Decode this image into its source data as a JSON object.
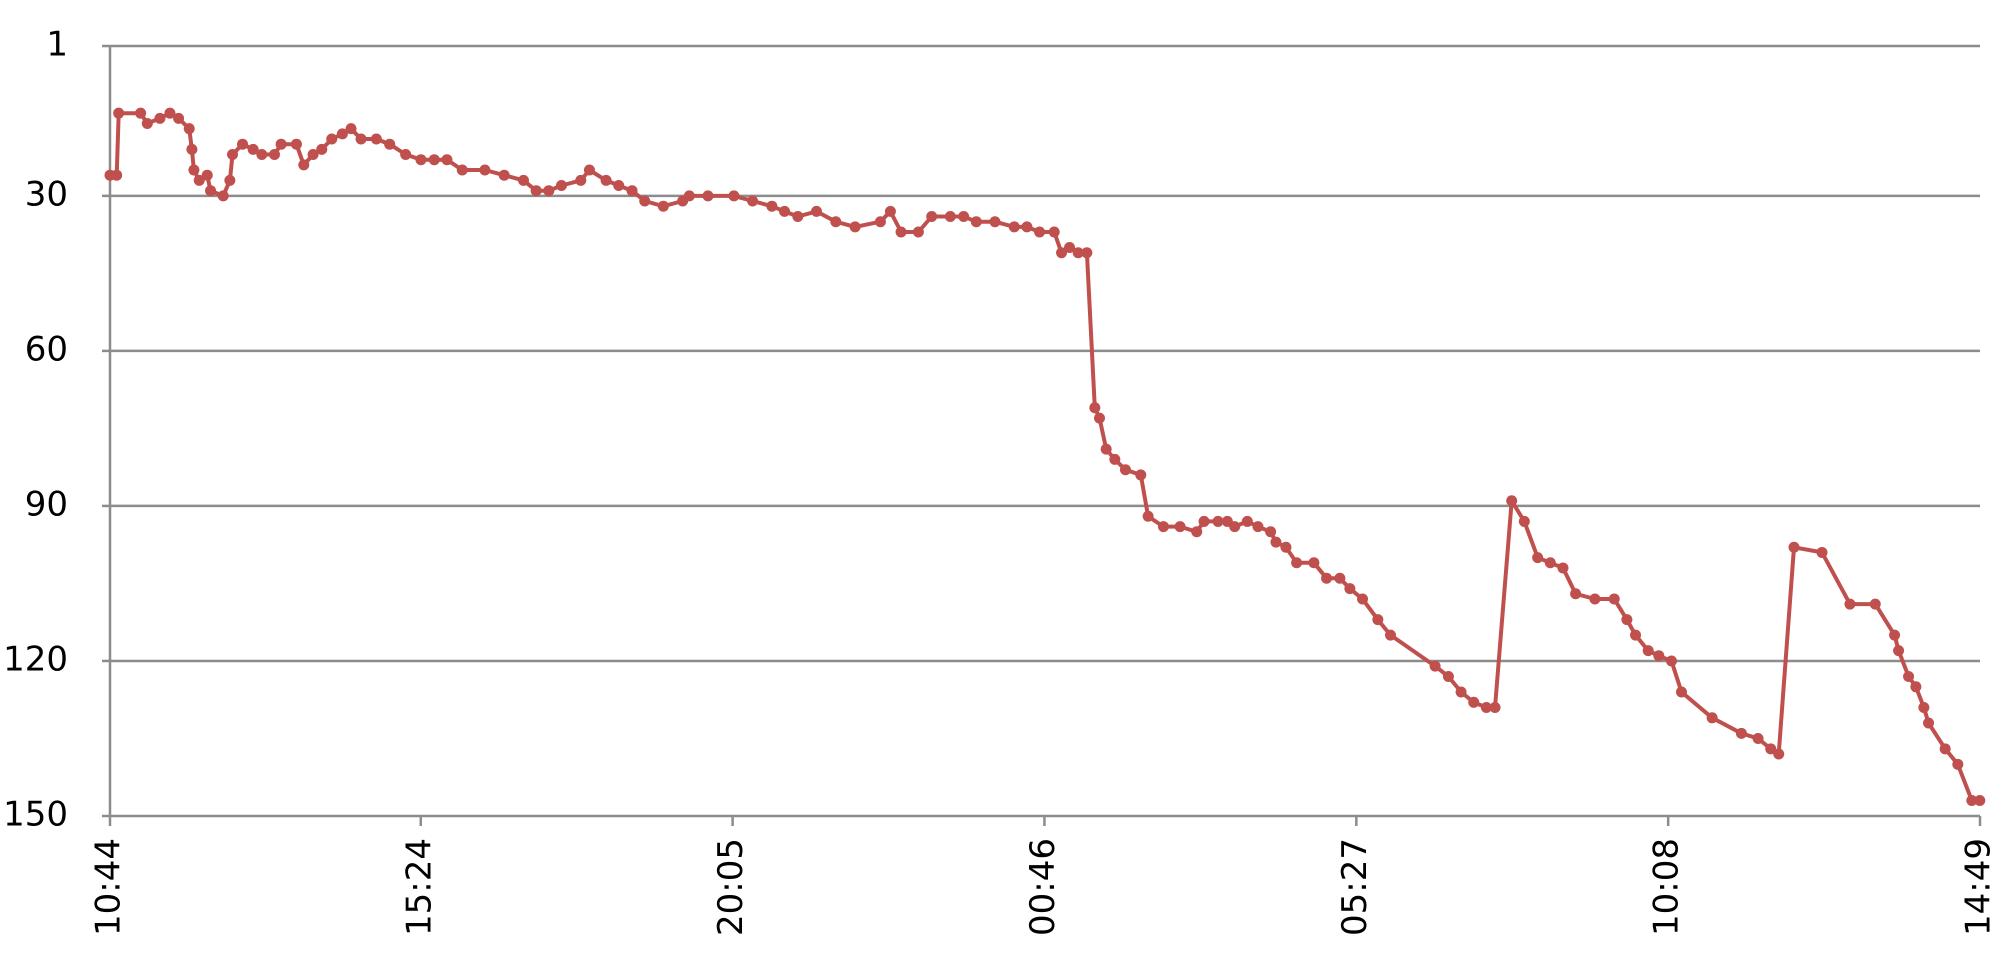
{
  "chart_data": {
    "type": "line",
    "color": "#c0504d",
    "grid": true,
    "y_inverted": true,
    "ylim": [
      1,
      150
    ],
    "yticks": [
      1,
      30,
      60,
      90,
      120,
      150
    ],
    "xlim": [
      0,
      28.083
    ],
    "xticks": [
      {
        "value": 0,
        "label": "10:44"
      },
      {
        "value": 4.667,
        "label": "15:24"
      },
      {
        "value": 9.35,
        "label": "20:05"
      },
      {
        "value": 14.033,
        "label": "00:46"
      },
      {
        "value": 18.717,
        "label": "05:27"
      },
      {
        "value": 23.4,
        "label": "10:08"
      },
      {
        "value": 28.083,
        "label": "14:49"
      }
    ],
    "x": [
      0,
      0.1,
      0.13,
      0.46,
      0.56,
      0.75,
      0.9,
      1.03,
      1.19,
      1.23,
      1.26,
      1.34,
      1.46,
      1.51,
      1.7,
      1.8,
      1.84,
      1.99,
      2.15,
      2.28,
      2.47,
      2.57,
      2.8,
      2.91,
      3.05,
      3.18,
      3.33,
      3.49,
      3.62,
      3.77,
      4.0,
      4.2,
      4.44,
      4.67,
      4.87,
      5.06,
      5.29,
      5.63,
      5.92,
      6.21,
      6.4,
      6.59,
      6.78,
      7.07,
      7.2,
      7.45,
      7.64,
      7.84,
      8.03,
      8.31,
      8.6,
      8.7,
      8.98,
      9.37,
      9.65,
      9.94,
      10.13,
      10.33,
      10.61,
      10.9,
      11.19,
      11.57,
      11.72,
      11.88,
      12.14,
      12.34,
      12.62,
      12.82,
      13.01,
      13.29,
      13.58,
      13.77,
      13.96,
      14.18,
      14.29,
      14.41,
      14.54,
      14.67,
      14.79,
      14.86,
      14.96,
      15.09,
      15.25,
      15.48,
      15.59,
      15.82,
      16.07,
      16.32,
      16.43,
      16.64,
      16.78,
      16.89,
      17.08,
      17.24,
      17.43,
      17.51,
      17.66,
      17.82,
      18.08,
      18.27,
      18.47,
      18.62,
      18.81,
      19.04,
      19.23,
      19.9,
      20.1,
      20.29,
      20.48,
      20.67,
      20.8,
      21.05,
      21.24,
      21.44,
      21.63,
      21.82,
      22.01,
      22.3,
      22.59,
      22.78,
      22.91,
      23.1,
      23.26,
      23.45,
      23.6,
      24.06,
      24.5,
      24.75,
      24.94,
      25.06,
      25.29,
      25.71,
      26.13,
      26.51,
      26.8,
      26.86,
      27.01,
      27.12,
      27.24,
      27.31,
      27.56,
      27.75,
      27.96,
      28.08
    ],
    "values": [
      26,
      26,
      14,
      14,
      16,
      15,
      14,
      15,
      17,
      21,
      25,
      27,
      26,
      29,
      30,
      27,
      22,
      20,
      21,
      22,
      22,
      20,
      20,
      24,
      22,
      21,
      19,
      18,
      17,
      19,
      19,
      20,
      22,
      23,
      23,
      23,
      25,
      25,
      26,
      27,
      29,
      29,
      28,
      27,
      25,
      27,
      28,
      29,
      31,
      32,
      31,
      30,
      30,
      30,
      31,
      32,
      33,
      34,
      33,
      35,
      36,
      35,
      33,
      37,
      37,
      34,
      34,
      34,
      35,
      35,
      36,
      36,
      37,
      37,
      41,
      40,
      41,
      41,
      71,
      73,
      79,
      81,
      83,
      84,
      92,
      94,
      94,
      95,
      93,
      93,
      93,
      94,
      93,
      94,
      95,
      97,
      98,
      101,
      101,
      104,
      104,
      106,
      108,
      112,
      115,
      121,
      123,
      126,
      128,
      129,
      129,
      89,
      93,
      100,
      101,
      102,
      107,
      108,
      108,
      112,
      115,
      118,
      119,
      120,
      126,
      131,
      134,
      135,
      137,
      138,
      98,
      99,
      109,
      109,
      115,
      118,
      123,
      125,
      129,
      132,
      137,
      140,
      147,
      147
    ]
  }
}
